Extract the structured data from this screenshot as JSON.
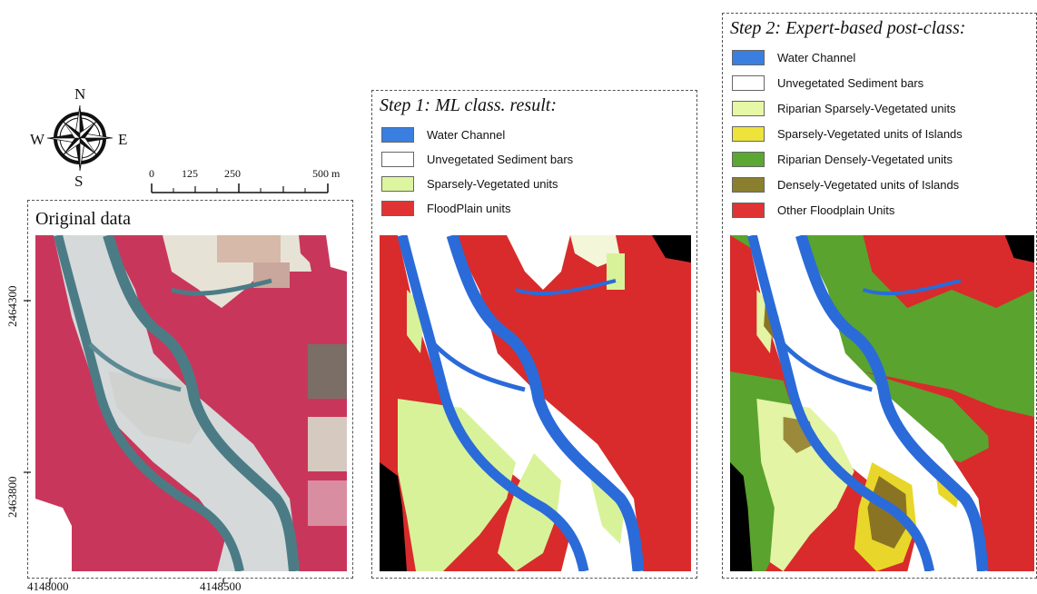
{
  "compass": {
    "n": "N",
    "s": "S",
    "e": "E",
    "w": "W"
  },
  "scale_bar": {
    "ticks": [
      "0",
      "125",
      "250",
      "500 m"
    ]
  },
  "panel_original": {
    "title": "Original data",
    "y_coords": [
      "2464300",
      "2463800"
    ],
    "x_coords": [
      "4148000",
      "4148500"
    ]
  },
  "panel_step1": {
    "title": "Step 1: ML class. result:",
    "legend": [
      {
        "label": "Water Channel",
        "color": "#3a7fe0"
      },
      {
        "label": "Unvegetated Sediment bars",
        "color": "#ffffff"
      },
      {
        "label": "Sparsely-Vegetated units",
        "color": "#def5a0"
      },
      {
        "label": "FloodPlain units",
        "color": "#e03434"
      }
    ]
  },
  "panel_step2": {
    "title": "Step 2: Expert-based post-class:",
    "legend": [
      {
        "label": "Water Channel",
        "color": "#3a7fe0"
      },
      {
        "label": "Unvegetated Sediment bars",
        "color": "#ffffff"
      },
      {
        "label": "Riparian Sparsely-Vegetated units",
        "color": "#e6f7a6"
      },
      {
        "label": "Sparsely-Vegetated units of Islands",
        "color": "#ede33a"
      },
      {
        "label": "Riparian Densely-Vegetated units",
        "color": "#5aa832"
      },
      {
        "label": "Densely-Vegetated units of Islands",
        "color": "#8a7f2e"
      },
      {
        "label": "Other Floodplain Units",
        "color": "#e03434"
      }
    ]
  }
}
